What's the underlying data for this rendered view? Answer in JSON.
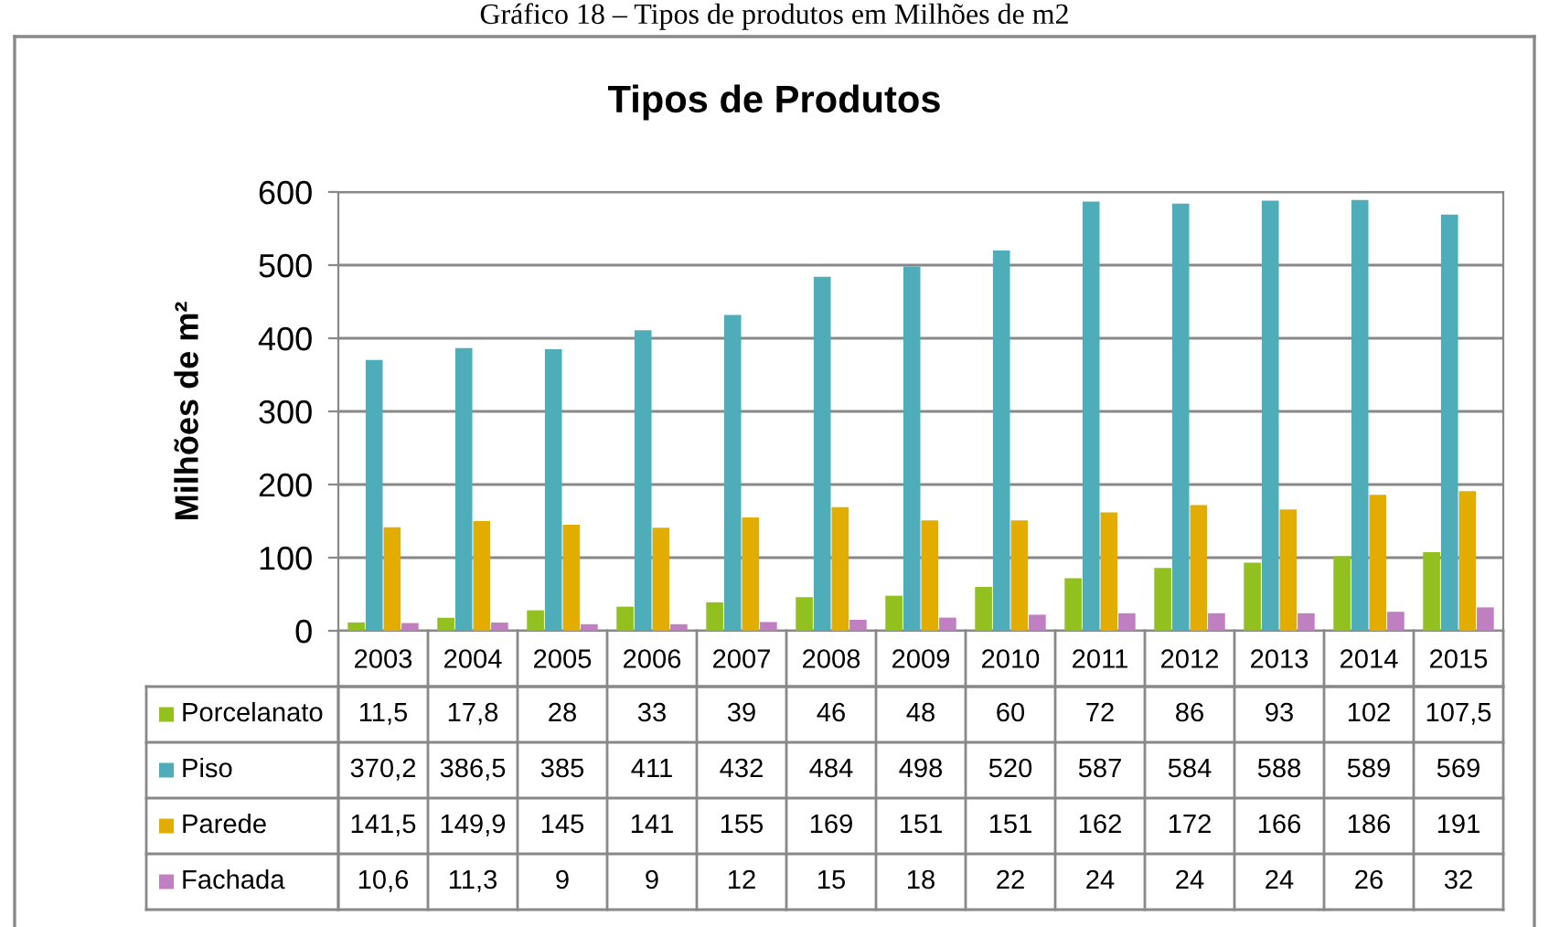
{
  "chart_data": {
    "type": "bar",
    "title": "Tipos de Produtos",
    "ylabel": "Milhões de m²",
    "annotations": [
      "Gráfico 18 – Tipos de produtos em Milhões de m2"
    ],
    "categories": [
      "2003",
      "2004",
      "2005",
      "2006",
      "2007",
      "2008",
      "2009",
      "2010",
      "2011",
      "2012",
      "2013",
      "2014",
      "2015"
    ],
    "series": [
      {
        "name": "Porcelanato",
        "color": "#92c01f",
        "values": [
          11.5,
          17.8,
          28,
          33,
          39,
          46,
          48,
          60,
          72,
          86,
          93,
          102,
          107.5
        ],
        "value_labels": [
          "11,5",
          "17,8",
          "28",
          "33",
          "39",
          "46",
          "48",
          "60",
          "72",
          "86",
          "93",
          "102",
          "107,5"
        ]
      },
      {
        "name": "Piso",
        "color": "#4fadb9",
        "values": [
          370.2,
          386.5,
          385,
          411,
          432,
          484,
          498,
          520,
          587,
          584,
          588,
          589,
          569
        ],
        "value_labels": [
          "370,2",
          "386,5",
          "385",
          "411",
          "432",
          "484",
          "498",
          "520",
          "587",
          "584",
          "588",
          "589",
          "569"
        ]
      },
      {
        "name": "Parede",
        "color": "#e2ac00",
        "values": [
          141.5,
          149.9,
          145,
          141,
          155,
          169,
          151,
          151,
          162,
          172,
          166,
          186,
          191
        ],
        "value_labels": [
          "141,5",
          "149,9",
          "145",
          "141",
          "155",
          "169",
          "151",
          "151",
          "162",
          "172",
          "166",
          "186",
          "191"
        ]
      },
      {
        "name": "Fachada",
        "color": "#c07fc0",
        "values": [
          10.6,
          11.3,
          9,
          9,
          12,
          15,
          18,
          22,
          24,
          24,
          24,
          26,
          32
        ],
        "value_labels": [
          "10,6",
          "11,3",
          "9",
          "9",
          "12",
          "15",
          "18",
          "22",
          "24",
          "24",
          "24",
          "26",
          "32"
        ]
      }
    ],
    "ylim": [
      0,
      600
    ],
    "yticks": [
      0,
      100,
      200,
      300,
      400,
      500,
      600
    ],
    "grid": "y",
    "legend": "bottom left"
  }
}
